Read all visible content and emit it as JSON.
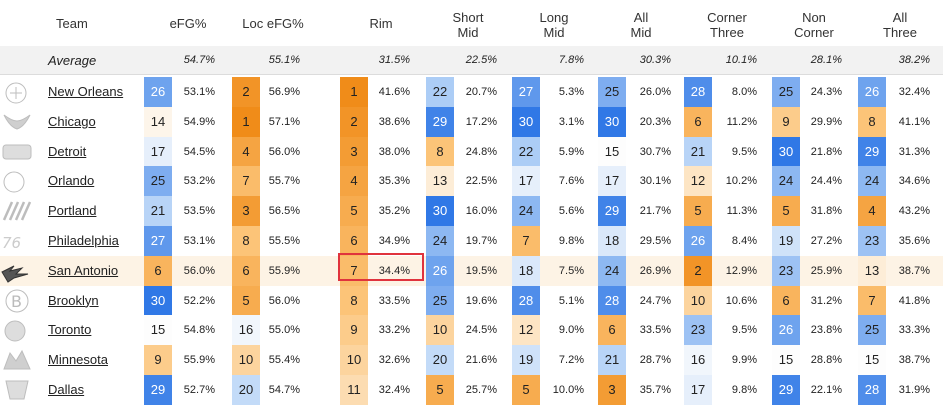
{
  "header": {
    "team": "Team",
    "cols": [
      "eFG%",
      "Loc eFG%",
      "Rim",
      "Short\nMid",
      "Long\nMid",
      "All\nMid",
      "Corner\nThree",
      "Non\nCorner",
      "All\nThree"
    ]
  },
  "average": {
    "label": "Average",
    "values": [
      "54.7%",
      "55.1%",
      "31.5%",
      "22.5%",
      "7.8%",
      "30.3%",
      "10.1%",
      "28.1%",
      "38.2%"
    ]
  },
  "selected_row": "San Antonio",
  "rows": [
    {
      "team": "New Orleans",
      "logo": "pelicans-logo",
      "cells": [
        [
          "26",
          "53.1%"
        ],
        [
          "2",
          "56.9%"
        ],
        [
          "1",
          "41.6%"
        ],
        [
          "22",
          "20.7%"
        ],
        [
          "27",
          "5.3%"
        ],
        [
          "25",
          "26.0%"
        ],
        [
          "28",
          "8.0%"
        ],
        [
          "25",
          "24.3%"
        ],
        [
          "26",
          "32.4%"
        ]
      ]
    },
    {
      "team": "Chicago",
      "logo": "bulls-logo",
      "cells": [
        [
          "14",
          "54.9%"
        ],
        [
          "1",
          "57.1%"
        ],
        [
          "2",
          "38.6%"
        ],
        [
          "29",
          "17.2%"
        ],
        [
          "30",
          "3.1%"
        ],
        [
          "30",
          "20.3%"
        ],
        [
          "6",
          "11.2%"
        ],
        [
          "9",
          "29.9%"
        ],
        [
          "8",
          "41.1%"
        ]
      ]
    },
    {
      "team": "Detroit",
      "logo": "pistons-logo",
      "cells": [
        [
          "17",
          "54.5%"
        ],
        [
          "4",
          "56.0%"
        ],
        [
          "3",
          "38.0%"
        ],
        [
          "8",
          "24.8%"
        ],
        [
          "22",
          "5.9%"
        ],
        [
          "15",
          "30.7%"
        ],
        [
          "21",
          "9.5%"
        ],
        [
          "30",
          "21.8%"
        ],
        [
          "29",
          "31.3%"
        ]
      ]
    },
    {
      "team": "Orlando",
      "logo": "magic-logo",
      "cells": [
        [
          "25",
          "53.2%"
        ],
        [
          "7",
          "55.7%"
        ],
        [
          "4",
          "35.3%"
        ],
        [
          "13",
          "22.5%"
        ],
        [
          "17",
          "7.6%"
        ],
        [
          "17",
          "30.1%"
        ],
        [
          "12",
          "10.2%"
        ],
        [
          "24",
          "24.4%"
        ],
        [
          "24",
          "34.6%"
        ]
      ]
    },
    {
      "team": "Portland",
      "logo": "blazers-logo",
      "cells": [
        [
          "21",
          "53.5%"
        ],
        [
          "3",
          "56.5%"
        ],
        [
          "5",
          "35.2%"
        ],
        [
          "30",
          "16.0%"
        ],
        [
          "24",
          "5.6%"
        ],
        [
          "29",
          "21.7%"
        ],
        [
          "5",
          "11.3%"
        ],
        [
          "5",
          "31.8%"
        ],
        [
          "4",
          "43.2%"
        ]
      ]
    },
    {
      "team": "Philadelphia",
      "logo": "sixers-logo",
      "cells": [
        [
          "27",
          "53.1%"
        ],
        [
          "8",
          "55.5%"
        ],
        [
          "6",
          "34.9%"
        ],
        [
          "24",
          "19.7%"
        ],
        [
          "7",
          "9.8%"
        ],
        [
          "18",
          "29.5%"
        ],
        [
          "26",
          "8.4%"
        ],
        [
          "19",
          "27.2%"
        ],
        [
          "23",
          "35.6%"
        ]
      ]
    },
    {
      "team": "San Antonio",
      "logo": "spurs-logo",
      "cells": [
        [
          "6",
          "56.0%"
        ],
        [
          "6",
          "55.9%"
        ],
        [
          "7",
          "34.4%"
        ],
        [
          "26",
          "19.5%"
        ],
        [
          "18",
          "7.5%"
        ],
        [
          "24",
          "26.9%"
        ],
        [
          "2",
          "12.9%"
        ],
        [
          "23",
          "25.9%"
        ],
        [
          "13",
          "38.7%"
        ]
      ]
    },
    {
      "team": "Brooklyn",
      "logo": "nets-logo",
      "cells": [
        [
          "30",
          "52.2%"
        ],
        [
          "5",
          "56.0%"
        ],
        [
          "8",
          "33.5%"
        ],
        [
          "25",
          "19.6%"
        ],
        [
          "28",
          "5.1%"
        ],
        [
          "28",
          "24.7%"
        ],
        [
          "10",
          "10.6%"
        ],
        [
          "6",
          "31.2%"
        ],
        [
          "7",
          "41.8%"
        ]
      ]
    },
    {
      "team": "Toronto",
      "logo": "raptors-logo",
      "cells": [
        [
          "15",
          "54.8%"
        ],
        [
          "16",
          "55.0%"
        ],
        [
          "9",
          "33.2%"
        ],
        [
          "10",
          "24.5%"
        ],
        [
          "12",
          "9.0%"
        ],
        [
          "6",
          "33.5%"
        ],
        [
          "23",
          "9.5%"
        ],
        [
          "26",
          "23.8%"
        ],
        [
          "25",
          "33.3%"
        ]
      ]
    },
    {
      "team": "Minnesota",
      "logo": "wolves-logo",
      "cells": [
        [
          "9",
          "55.9%"
        ],
        [
          "10",
          "55.4%"
        ],
        [
          "10",
          "32.6%"
        ],
        [
          "20",
          "21.6%"
        ],
        [
          "19",
          "7.2%"
        ],
        [
          "21",
          "28.7%"
        ],
        [
          "16",
          "9.9%"
        ],
        [
          "15",
          "28.8%"
        ],
        [
          "15",
          "38.7%"
        ]
      ]
    },
    {
      "team": "Dallas",
      "logo": "mavericks-logo",
      "cells": [
        [
          "29",
          "52.7%"
        ],
        [
          "20",
          "54.7%"
        ],
        [
          "11",
          "32.4%"
        ],
        [
          "5",
          "25.7%"
        ],
        [
          "5",
          "10.0%"
        ],
        [
          "3",
          "35.7%"
        ],
        [
          "17",
          "9.8%"
        ],
        [
          "29",
          "22.1%"
        ],
        [
          "28",
          "31.9%"
        ]
      ]
    }
  ]
}
